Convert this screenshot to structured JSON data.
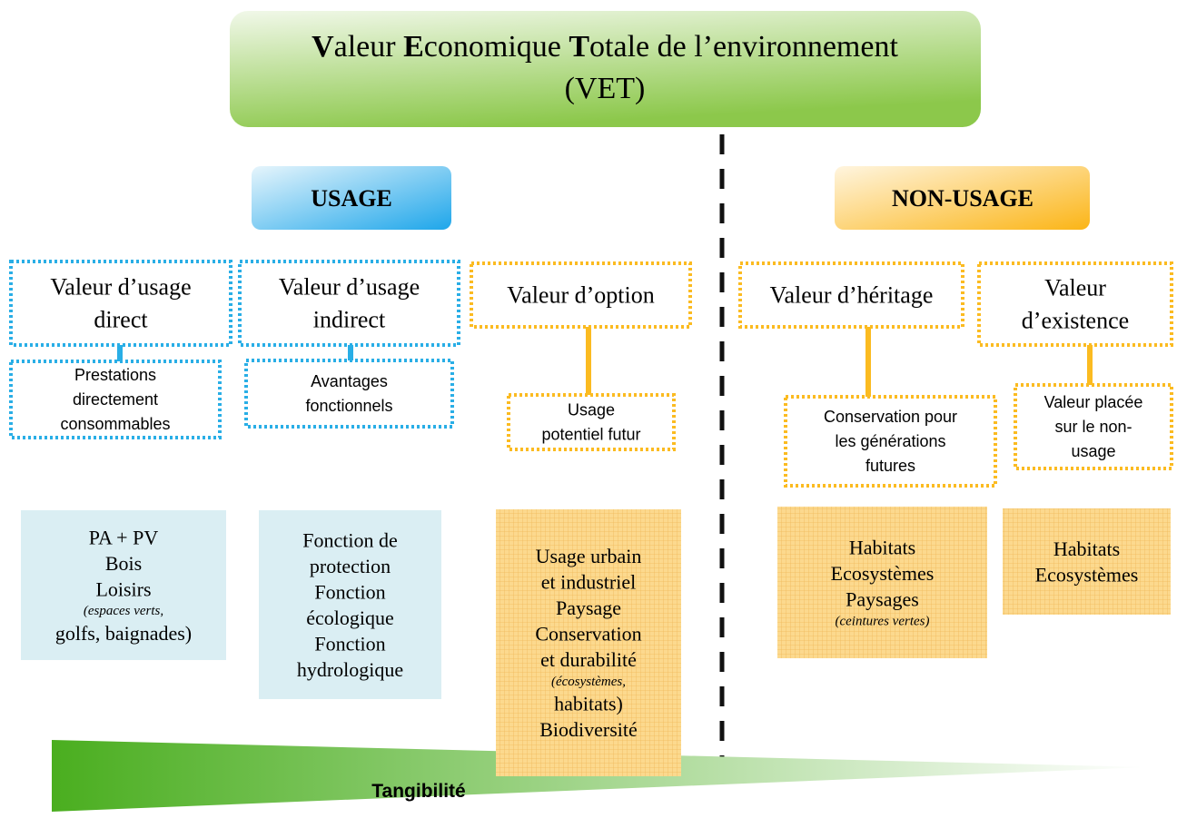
{
  "title_parts": [
    "V",
    "aleur ",
    "E",
    "conomique ",
    "T",
    "otale de l’environnement"
  ],
  "title_line2": "(VET)",
  "groups": [
    "USAGE",
    "NON-USAGE"
  ],
  "columns": [
    {
      "value": [
        "Valeur d’usage",
        "direct"
      ],
      "nature": [
        "Prestations",
        "directement",
        "consommables"
      ],
      "examples": [
        "PA + PV",
        "Bois",
        "Loisirs",
        "(espaces verts,",
        "golfs, baignades)"
      ]
    },
    {
      "value": [
        "Valeur d’usage",
        "indirect"
      ],
      "nature": [
        "Avantages",
        "fonctionnels"
      ],
      "examples": [
        "Fonction de",
        "protection",
        "Fonction",
        "écologique",
        "Fonction",
        "hydrologique"
      ]
    },
    {
      "value": [
        "Valeur d’option"
      ],
      "nature": [
        "Usage",
        "potentiel futur"
      ],
      "examples": [
        "Usage urbain",
        "et industriel",
        "Paysage",
        "Conservation",
        "et durabilité",
        "(écosystèmes,",
        "habitats)",
        "Biodiversité"
      ]
    },
    {
      "value": [
        "Valeur d’héritage"
      ],
      "nature": [
        "Conservation pour",
        "les générations",
        "futures"
      ],
      "examples": [
        "Habitats",
        "Ecosystèmes",
        "Paysages",
        "(ceintures vertes)"
      ]
    },
    {
      "value": [
        "Valeur",
        "d’existence"
      ],
      "nature": [
        "Valeur placée",
        "sur le non-",
        "usage"
      ],
      "examples": [
        "Habitats",
        "Ecosystèmes"
      ]
    }
  ],
  "arrow_label": "Tangibilité"
}
